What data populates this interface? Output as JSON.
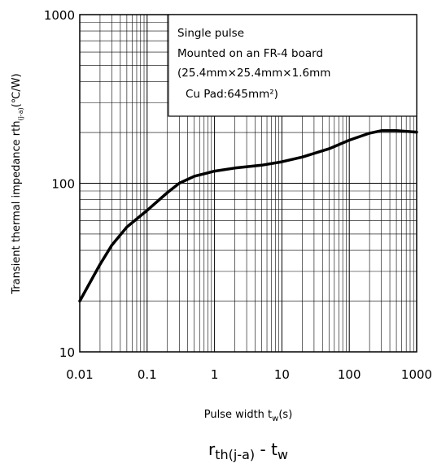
{
  "chart_data": {
    "type": "line",
    "x_scale": "log",
    "y_scale": "log",
    "xlim": [
      0.01,
      1000
    ],
    "ylim": [
      10,
      1000
    ],
    "xticks": [
      "0.01",
      "0.1",
      "1",
      "10",
      "100",
      "1000"
    ],
    "yticks": [
      "10",
      "100",
      "1000"
    ],
    "grid": true,
    "xlabel": {
      "main": "Pulse width  t",
      "sub": "w",
      "unit": "(s)"
    },
    "ylabel": {
      "main": "Transient thermal impedance rth",
      "sub": "(j-a)",
      "unit": "(℃/W)"
    },
    "annotation": [
      "Single pulse",
      "Mounted on an FR-4 board",
      "(25.4mm×25.4mm×1.6mm",
      "Cu Pad:645mm²)"
    ],
    "caption": {
      "main": "r",
      "sub": "th(j-a)",
      "mid": " - t",
      "sub2": "w"
    },
    "series": [
      {
        "x": [
          0.01,
          0.02,
          0.03,
          0.05,
          0.1,
          0.2,
          0.3,
          0.5,
          1,
          2,
          5,
          10,
          20,
          50,
          100,
          200,
          300,
          500,
          1000
        ],
        "y": [
          20,
          33,
          43,
          55,
          69,
          88,
          100,
          110,
          118,
          123,
          128,
          134,
          143,
          160,
          180,
          198,
          205,
          205,
          201
        ]
      }
    ]
  }
}
